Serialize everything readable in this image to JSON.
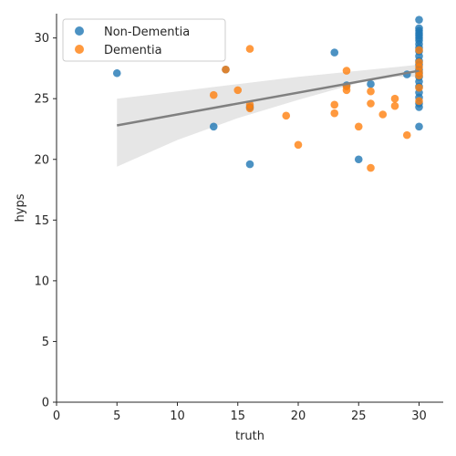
{
  "chart_data": {
    "type": "scatter",
    "title": "",
    "xlabel": "truth",
    "ylabel": "hyps",
    "xlim": [
      0,
      32
    ],
    "ylim": [
      0,
      32
    ],
    "xticks": [
      "0",
      "5",
      "10",
      "15",
      "20",
      "25",
      "30"
    ],
    "yticks": [
      "0",
      "5",
      "10",
      "15",
      "20",
      "25",
      "30"
    ],
    "grid": false,
    "legend_position": "top-left",
    "series": [
      {
        "name": "Non-Dementia",
        "color": "#1f77b4",
        "points": [
          [
            5,
            27.1
          ],
          [
            13,
            22.7
          ],
          [
            14,
            27.4
          ],
          [
            16,
            19.6
          ],
          [
            16,
            24.3
          ],
          [
            23,
            28.8
          ],
          [
            24,
            26.1
          ],
          [
            25,
            20.0
          ],
          [
            26,
            26.2
          ],
          [
            29,
            27.0
          ],
          [
            30,
            31.5
          ],
          [
            30,
            30.8
          ],
          [
            30,
            30.6
          ],
          [
            30,
            30.4
          ],
          [
            30,
            30.2
          ],
          [
            30,
            30.0
          ],
          [
            30,
            29.8
          ],
          [
            30,
            29.5
          ],
          [
            30,
            29.2
          ],
          [
            30,
            28.9
          ],
          [
            30,
            28.5
          ],
          [
            30,
            28.1
          ],
          [
            30,
            27.8
          ],
          [
            30,
            27.4
          ],
          [
            30,
            27.1
          ],
          [
            30,
            26.8
          ],
          [
            30,
            26.4
          ],
          [
            30,
            26.0
          ],
          [
            30,
            25.5
          ],
          [
            30,
            25.1
          ],
          [
            30,
            24.6
          ],
          [
            30,
            24.3
          ],
          [
            30,
            22.7
          ]
        ]
      },
      {
        "name": "Dementia",
        "color": "#ff7f0e",
        "points": [
          [
            13,
            25.3
          ],
          [
            14,
            27.4
          ],
          [
            15,
            25.7
          ],
          [
            16,
            29.1
          ],
          [
            16,
            24.5
          ],
          [
            16,
            24.2
          ],
          [
            19,
            23.6
          ],
          [
            20,
            21.2
          ],
          [
            23,
            24.5
          ],
          [
            23,
            23.8
          ],
          [
            24,
            27.3
          ],
          [
            24,
            26.0
          ],
          [
            24,
            25.7
          ],
          [
            25,
            22.7
          ],
          [
            26,
            25.6
          ],
          [
            26,
            24.6
          ],
          [
            26,
            19.3
          ],
          [
            27,
            23.7
          ],
          [
            28,
            25.0
          ],
          [
            28,
            24.4
          ],
          [
            29,
            22.0
          ],
          [
            30,
            29.0
          ],
          [
            30,
            28.0
          ],
          [
            30,
            27.6
          ],
          [
            30,
            27.2
          ],
          [
            30,
            26.9
          ],
          [
            30,
            25.9
          ],
          [
            30,
            24.8
          ]
        ]
      }
    ],
    "regression": {
      "color": "#808080",
      "line": [
        [
          5,
          22.8
        ],
        [
          30,
          27.3
        ]
      ],
      "ci_upper": [
        [
          5,
          25.0
        ],
        [
          10,
          25.6
        ],
        [
          15,
          26.2
        ],
        [
          20,
          26.8
        ],
        [
          25,
          27.3
        ],
        [
          28,
          27.6
        ],
        [
          30,
          27.8
        ]
      ],
      "ci_lower": [
        [
          5,
          19.4
        ],
        [
          10,
          21.6
        ],
        [
          15,
          23.4
        ],
        [
          20,
          24.9
        ],
        [
          25,
          26.3
        ],
        [
          28,
          26.8
        ],
        [
          30,
          26.8
        ]
      ]
    }
  }
}
